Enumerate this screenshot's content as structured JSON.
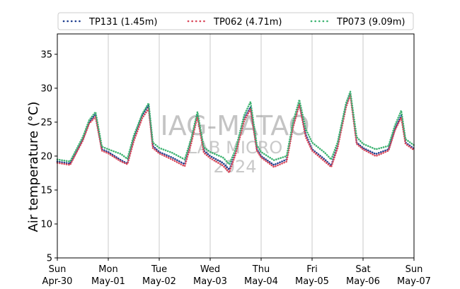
{
  "chart_data": {
    "type": "line",
    "ylabel": "Air temperature (°C)",
    "xlabel": "",
    "ylim": [
      5,
      38
    ],
    "yticks": [
      5,
      10,
      15,
      20,
      25,
      30,
      35
    ],
    "xlim": [
      "2024-04-30T00:00",
      "2024-05-07T00:00"
    ],
    "xticks": [
      {
        "day": "Sun",
        "date": "Apr-30"
      },
      {
        "day": "Mon",
        "date": "May-01"
      },
      {
        "day": "Tue",
        "date": "May-02"
      },
      {
        "day": "Wed",
        "date": "May-03"
      },
      {
        "day": "Thu",
        "date": "May-04"
      },
      {
        "day": "Fri",
        "date": "May-05"
      },
      {
        "day": "Sat",
        "date": "May-06"
      },
      {
        "day": "Sun",
        "date": "May-07"
      }
    ],
    "grid": "vertical at day boundaries",
    "legend_position": "top",
    "watermark": [
      "IAG-MATAO",
      "LAB MICRO",
      "2024"
    ],
    "series": [
      {
        "name": "TP131 (1.45m)",
        "color": "#1f3f8f",
        "points": [
          [
            "2024-04-30T00:00",
            19.2
          ],
          [
            "2024-04-30T06:00",
            18.9
          ],
          [
            "2024-04-30T12:00",
            22.5
          ],
          [
            "2024-04-30T15:00",
            25.0
          ],
          [
            "2024-04-30T18:00",
            26.2
          ],
          [
            "2024-04-30T21:00",
            21.0
          ],
          [
            "2024-05-01T00:00",
            20.6
          ],
          [
            "2024-05-01T06:00",
            19.4
          ],
          [
            "2024-05-01T09:00",
            18.9
          ],
          [
            "2024-05-01T12:00",
            22.5
          ],
          [
            "2024-05-01T16:00",
            26.0
          ],
          [
            "2024-05-01T19:00",
            27.5
          ],
          [
            "2024-05-01T21:00",
            21.5
          ],
          [
            "2024-05-02T00:00",
            20.6
          ],
          [
            "2024-05-02T06:00",
            19.8
          ],
          [
            "2024-05-02T12:00",
            18.8
          ],
          [
            "2024-05-02T15:00",
            22.0
          ],
          [
            "2024-05-02T18:00",
            26.0
          ],
          [
            "2024-05-02T21:00",
            20.8
          ],
          [
            "2024-05-03T00:00",
            20.0
          ],
          [
            "2024-05-03T06:00",
            19.0
          ],
          [
            "2024-05-03T09:00",
            18.0
          ],
          [
            "2024-05-03T12:00",
            20.5
          ],
          [
            "2024-05-03T16:00",
            25.5
          ],
          [
            "2024-05-03T19:00",
            27.2
          ],
          [
            "2024-05-03T22:00",
            21.0
          ],
          [
            "2024-05-04T00:00",
            20.0
          ],
          [
            "2024-05-04T06:00",
            18.7
          ],
          [
            "2024-05-04T12:00",
            19.5
          ],
          [
            "2024-05-04T15:00",
            24.5
          ],
          [
            "2024-05-04T18:00",
            27.8
          ],
          [
            "2024-05-04T21:00",
            23.2
          ],
          [
            "2024-05-05T00:00",
            21.0
          ],
          [
            "2024-05-05T06:00",
            19.5
          ],
          [
            "2024-05-05T09:00",
            18.6
          ],
          [
            "2024-05-05T12:00",
            21.5
          ],
          [
            "2024-05-05T16:00",
            27.5
          ],
          [
            "2024-05-05T18:00",
            29.3
          ],
          [
            "2024-05-05T21:00",
            22.0
          ],
          [
            "2024-05-06T00:00",
            21.2
          ],
          [
            "2024-05-06T06:00",
            20.3
          ],
          [
            "2024-05-06T12:00",
            21.0
          ],
          [
            "2024-05-06T15:00",
            24.0
          ],
          [
            "2024-05-06T18:00",
            26.0
          ],
          [
            "2024-05-06T20:00",
            22.0
          ],
          [
            "2024-05-07T00:00",
            21.1
          ]
        ]
      },
      {
        "name": "TP062 (4.71m)",
        "color": "#d9475a",
        "points": [
          [
            "2024-04-30T00:00",
            19.0
          ],
          [
            "2024-04-30T06:00",
            18.7
          ],
          [
            "2024-04-30T12:00",
            22.3
          ],
          [
            "2024-04-30T15:00",
            24.8
          ],
          [
            "2024-04-30T18:00",
            25.8
          ],
          [
            "2024-04-30T21:00",
            20.8
          ],
          [
            "2024-05-01T00:00",
            20.4
          ],
          [
            "2024-05-01T06:00",
            19.2
          ],
          [
            "2024-05-01T09:00",
            18.8
          ],
          [
            "2024-05-01T12:00",
            22.2
          ],
          [
            "2024-05-01T16:00",
            25.6
          ],
          [
            "2024-05-01T19:00",
            27.0
          ],
          [
            "2024-05-01T21:00",
            21.2
          ],
          [
            "2024-05-02T00:00",
            20.4
          ],
          [
            "2024-05-02T06:00",
            19.5
          ],
          [
            "2024-05-02T12:00",
            18.5
          ],
          [
            "2024-05-02T15:00",
            21.8
          ],
          [
            "2024-05-02T18:00",
            25.8
          ],
          [
            "2024-05-02T21:00",
            20.5
          ],
          [
            "2024-05-03T00:00",
            19.7
          ],
          [
            "2024-05-03T06:00",
            18.6
          ],
          [
            "2024-05-03T09:00",
            17.6
          ],
          [
            "2024-05-03T12:00",
            20.3
          ],
          [
            "2024-05-03T16:00",
            25.2
          ],
          [
            "2024-05-03T19:00",
            26.9
          ],
          [
            "2024-05-03T22:00",
            20.8
          ],
          [
            "2024-05-04T00:00",
            19.8
          ],
          [
            "2024-05-04T06:00",
            18.4
          ],
          [
            "2024-05-04T12:00",
            19.2
          ],
          [
            "2024-05-04T15:00",
            24.2
          ],
          [
            "2024-05-04T18:00",
            27.6
          ],
          [
            "2024-05-04T21:00",
            22.8
          ],
          [
            "2024-05-05T00:00",
            20.8
          ],
          [
            "2024-05-05T06:00",
            19.2
          ],
          [
            "2024-05-05T09:00",
            18.4
          ],
          [
            "2024-05-05T12:00",
            21.2
          ],
          [
            "2024-05-05T16:00",
            27.2
          ],
          [
            "2024-05-05T18:00",
            29.0
          ],
          [
            "2024-05-05T21:00",
            21.8
          ],
          [
            "2024-05-06T00:00",
            21.0
          ],
          [
            "2024-05-06T06:00",
            20.0
          ],
          [
            "2024-05-06T12:00",
            20.8
          ],
          [
            "2024-05-06T15:00",
            23.8
          ],
          [
            "2024-05-06T18:00",
            25.7
          ],
          [
            "2024-05-06T20:00",
            21.8
          ],
          [
            "2024-05-07T00:00",
            20.9
          ]
        ]
      },
      {
        "name": "TP073 (9.09m)",
        "color": "#3cb371",
        "points": [
          [
            "2024-04-30T00:00",
            19.5
          ],
          [
            "2024-04-30T06:00",
            19.2
          ],
          [
            "2024-04-30T12:00",
            22.8
          ],
          [
            "2024-04-30T15:00",
            25.3
          ],
          [
            "2024-04-30T18:00",
            26.5
          ],
          [
            "2024-04-30T21:00",
            21.4
          ],
          [
            "2024-05-01T00:00",
            21.0
          ],
          [
            "2024-05-01T06:00",
            20.3
          ],
          [
            "2024-05-01T09:00",
            19.6
          ],
          [
            "2024-05-01T12:00",
            23.0
          ],
          [
            "2024-05-01T16:00",
            26.2
          ],
          [
            "2024-05-01T19:00",
            27.8
          ],
          [
            "2024-05-01T21:00",
            22.0
          ],
          [
            "2024-05-02T00:00",
            21.2
          ],
          [
            "2024-05-02T06:00",
            20.5
          ],
          [
            "2024-05-02T12:00",
            19.5
          ],
          [
            "2024-05-02T15:00",
            22.5
          ],
          [
            "2024-05-02T18:00",
            26.5
          ],
          [
            "2024-05-02T21:00",
            21.3
          ],
          [
            "2024-05-03T00:00",
            20.6
          ],
          [
            "2024-05-03T06:00",
            19.8
          ],
          [
            "2024-05-03T09:00",
            18.8
          ],
          [
            "2024-05-03T12:00",
            21.0
          ],
          [
            "2024-05-03T16:00",
            26.0
          ],
          [
            "2024-05-03T19:00",
            28.0
          ],
          [
            "2024-05-03T22:00",
            21.6
          ],
          [
            "2024-05-04T00:00",
            20.6
          ],
          [
            "2024-05-04T06:00",
            19.4
          ],
          [
            "2024-05-04T12:00",
            20.0
          ],
          [
            "2024-05-04T15:00",
            25.0
          ],
          [
            "2024-05-04T18:00",
            28.3
          ],
          [
            "2024-05-04T21:00",
            24.0
          ],
          [
            "2024-05-05T00:00",
            22.0
          ],
          [
            "2024-05-05T06:00",
            20.5
          ],
          [
            "2024-05-05T09:00",
            19.5
          ],
          [
            "2024-05-05T12:00",
            22.0
          ],
          [
            "2024-05-05T16:00",
            27.8
          ],
          [
            "2024-05-05T18:00",
            29.5
          ],
          [
            "2024-05-05T21:00",
            22.8
          ],
          [
            "2024-05-06T00:00",
            21.8
          ],
          [
            "2024-05-06T06:00",
            21.0
          ],
          [
            "2024-05-06T12:00",
            21.5
          ],
          [
            "2024-05-06T15:00",
            24.5
          ],
          [
            "2024-05-06T18:00",
            26.7
          ],
          [
            "2024-05-06T20:00",
            22.5
          ],
          [
            "2024-05-07T00:00",
            21.6
          ]
        ]
      }
    ]
  }
}
